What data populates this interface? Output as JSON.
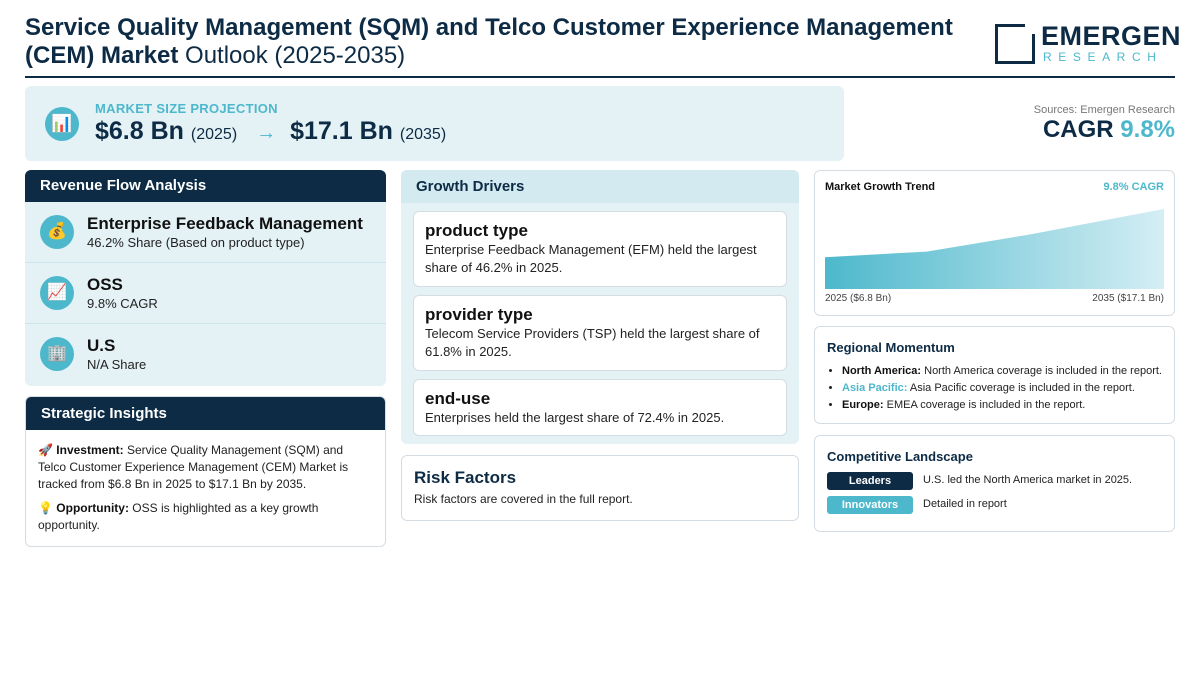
{
  "header": {
    "title_bold": "Service Quality Management (SQM) and Telco Customer Experience Management (CEM) Market",
    "title_light": "Outlook (2025-2035)",
    "logo_main": "EMERGEN",
    "logo_sub": "RESEARCH"
  },
  "projection": {
    "label": "MARKET SIZE PROJECTION",
    "start_value": "$6.8 Bn",
    "start_year": "(2025)",
    "arrow": "→",
    "end_value": "$17.1 Bn",
    "end_year": "(2035)",
    "icon": "bar-chart-icon"
  },
  "sources": "Sources: Emergen Research",
  "cagr": {
    "label": "CAGR",
    "value": "9.8%"
  },
  "revenue": {
    "title": "Revenue Flow Analysis",
    "items": [
      {
        "icon": "money-bag-icon",
        "glyph": "💰",
        "title": "Enterprise Feedback Management",
        "sub": "46.2% Share (Based on product type)"
      },
      {
        "icon": "trend-chart-icon",
        "glyph": "📈",
        "title": "OSS",
        "sub": "9.8% CAGR"
      },
      {
        "icon": "building-icon",
        "glyph": "🏢",
        "title": "U.S",
        "sub": "N/A Share"
      }
    ]
  },
  "insights": {
    "title": "Strategic Insights",
    "investment_glyph": "🚀",
    "investment_label": "Investment:",
    "investment_text": "Service Quality Management (SQM) and Telco Customer Experience Management (CEM) Market is tracked from $6.8 Bn in 2025 to $17.1 Bn by 2035.",
    "opportunity_glyph": "💡",
    "opportunity_label": "Opportunity:",
    "opportunity_text": "OSS is highlighted as a key growth opportunity."
  },
  "drivers": {
    "title": "Growth Drivers",
    "items": [
      {
        "title": "product type",
        "text": "Enterprise Feedback Management (EFM) held the largest share of 46.2% in 2025."
      },
      {
        "title": "provider type",
        "text": "Telecom Service Providers (TSP) held the largest share of 61.8% in 2025."
      },
      {
        "title": "end-use",
        "text": "Enterprises held the largest share of 72.4% in 2025."
      }
    ]
  },
  "risk": {
    "title": "Risk Factors",
    "text": "Risk factors are covered in the full report."
  },
  "trend": {
    "title": "Market Growth Trend",
    "cagr_label": "9.8% CAGR",
    "start_label": "2025 ($6.8 Bn)",
    "end_label": "2035 ($17.1 Bn)",
    "colors": {
      "start": "#4db8cc",
      "end": "#d4eef4"
    }
  },
  "chart_data": {
    "type": "area",
    "x": [
      2025,
      2028,
      2031,
      2035
    ],
    "values": [
      6.8,
      8.0,
      11.6,
      17.1
    ],
    "title": "Market Growth Trend",
    "xlabel": "",
    "ylabel": "",
    "ylim": [
      0,
      17.1
    ],
    "grid": false
  },
  "regional": {
    "title": "Regional Momentum",
    "items": [
      {
        "label": "North America:",
        "text": "North America coverage is included in the report."
      },
      {
        "label": "Asia Pacific:",
        "text": "Asia Pacific coverage is included in the report."
      },
      {
        "label": "Europe:",
        "text": "EMEA coverage is included in the report."
      }
    ]
  },
  "competitive": {
    "title": "Competitive Landscape",
    "rows": [
      {
        "tag": "Leaders",
        "color": "#0d2b45",
        "text": "U.S. led the North America market in 2025."
      },
      {
        "tag": "Innovators",
        "color": "#4db8cc",
        "text": "Detailed in report"
      }
    ]
  }
}
